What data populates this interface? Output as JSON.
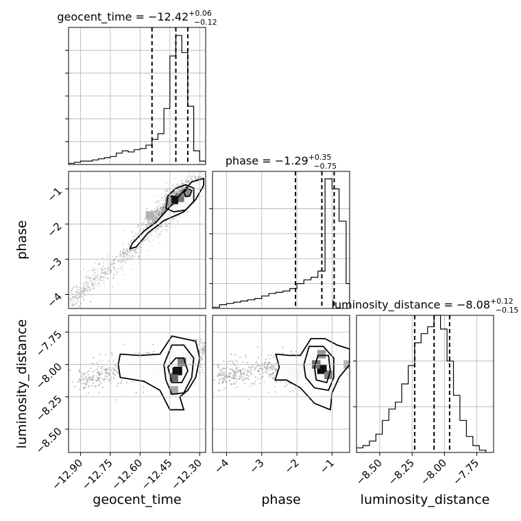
{
  "chart_data": {
    "type": "corner",
    "parameters": [
      {
        "key": "geocent_time",
        "label": "geocent_time",
        "title": {
          "prefix": "geocent_time = ",
          "value": "−12.42",
          "upper": "+0.06",
          "lower": "−0.12"
        },
        "range": [
          -12.96,
          -12.27
        ],
        "ticks": [
          -12.9,
          -12.75,
          -12.6,
          -12.45,
          -12.3
        ],
        "tick_labels": [
          "−12.90",
          "−12.75",
          "−12.60",
          "−12.45",
          "−12.30"
        ],
        "quantiles": [
          -12.54,
          -12.42,
          -12.36
        ],
        "hist_edges": [
          -12.96,
          -12.93,
          -12.9,
          -12.87,
          -12.84,
          -12.81,
          -12.78,
          -12.75,
          -12.72,
          -12.69,
          -12.66,
          -12.63,
          -12.6,
          -12.57,
          -12.54,
          -12.51,
          -12.48,
          -12.45,
          -12.42,
          -12.39,
          -12.36,
          -12.33,
          -12.3,
          -12.27
        ],
        "hist_counts": [
          1,
          2,
          3,
          3,
          4,
          5,
          6,
          7,
          10,
          12,
          11,
          13,
          14,
          17,
          22,
          27,
          49,
          95,
          113,
          98,
          51,
          12,
          3
        ]
      },
      {
        "key": "phase",
        "label": "phase",
        "title": {
          "prefix": "phase = ",
          "value": "−1.29",
          "upper": "+0.35",
          "lower": "−0.75"
        },
        "range": [
          -4.4,
          -0.5
        ],
        "ticks": [
          -4,
          -3,
          -2,
          -1
        ],
        "tick_labels": [
          "−4",
          "−3",
          "−2",
          "−1"
        ],
        "quantiles": [
          -2.04,
          -1.29,
          -0.94
        ],
        "hist_edges": [
          -4.4,
          -4.2,
          -4.0,
          -3.8,
          -3.6,
          -3.4,
          -3.2,
          -3.0,
          -2.8,
          -2.6,
          -2.4,
          -2.2,
          -2.0,
          -1.8,
          -1.6,
          -1.4,
          -1.2,
          -1.0,
          -0.8,
          -0.6,
          -0.5
        ],
        "hist_counts": [
          1,
          3,
          4,
          5,
          6,
          7,
          8,
          10,
          12,
          13,
          14,
          16,
          20,
          23,
          25,
          30,
          104,
          96,
          70,
          20
        ]
      },
      {
        "key": "luminosity_distance",
        "label": "luminosity_distance",
        "title": {
          "prefix": "luminosity_distance = ",
          "value": "−8.08",
          "upper": "+0.12",
          "lower": "−0.15"
        },
        "range": [
          -8.68,
          -7.62
        ],
        "ticks": [
          -8.5,
          -8.25,
          -8.0,
          -7.75
        ],
        "tick_labels": [
          "−8.50",
          "−8.25",
          "−8.00",
          "−7.75"
        ],
        "quantiles": [
          -8.23,
          -8.08,
          -7.96
        ],
        "hist_edges": [
          -8.68,
          -8.63,
          -8.58,
          -8.53,
          -8.48,
          -8.43,
          -8.38,
          -8.33,
          -8.28,
          -8.23,
          -8.18,
          -8.13,
          -8.08,
          -8.03,
          -7.98,
          -7.93,
          -7.88,
          -7.83,
          -7.78,
          -7.73,
          -7.68
        ],
        "hist_counts": [
          2,
          3,
          5,
          8,
          14,
          19,
          22,
          30,
          38,
          48,
          52,
          55,
          60,
          54,
          40,
          25,
          14,
          7,
          3,
          1
        ]
      }
    ],
    "density_ticks": {
      "geocent_time": [
        20,
        40,
        60,
        80,
        100
      ],
      "phase": [
        20,
        40,
        60,
        80
      ],
      "luminosity_distance": [
        20,
        40
      ]
    },
    "density_max": {
      "geocent_time": 120,
      "phase": 110,
      "luminosity_distance": 60
    },
    "pairs": [
      {
        "x": "geocent_time",
        "y": "phase",
        "peak": [
          -12.425,
          -1.3
        ],
        "ridge": [
          [
            -12.96,
            -4.25
          ],
          [
            -12.8,
            -3.45
          ],
          [
            -12.66,
            -2.8
          ],
          [
            -12.56,
            -2.15
          ],
          [
            -12.46,
            -1.55
          ],
          [
            -12.38,
            -1.15
          ],
          [
            -12.3,
            -0.75
          ]
        ],
        "spread": 0.24,
        "contours": [
          [
            [
              -12.64,
              -2.55
            ],
            [
              -12.58,
              -2.2
            ],
            [
              -12.52,
              -1.95
            ],
            [
              -12.48,
              -1.7
            ],
            [
              -12.44,
              -1.45
            ],
            [
              -12.38,
              -1.05
            ],
            [
              -12.34,
              -0.8
            ],
            [
              -12.28,
              -0.7
            ],
            [
              -12.28,
              -0.9
            ],
            [
              -12.32,
              -1.3
            ],
            [
              -12.38,
              -1.65
            ],
            [
              -12.48,
              -1.9
            ],
            [
              -12.56,
              -2.25
            ],
            [
              -12.62,
              -2.65
            ],
            [
              -12.65,
              -2.7
            ]
          ],
          [
            [
              -12.47,
              -1.55
            ],
            [
              -12.46,
              -1.2
            ],
            [
              -12.42,
              -0.98
            ],
            [
              -12.37,
              -0.88
            ],
            [
              -12.33,
              -0.98
            ],
            [
              -12.33,
              -1.35
            ],
            [
              -12.37,
              -1.6
            ],
            [
              -12.43,
              -1.65
            ]
          ],
          [
            [
              -12.38,
              -1.1
            ],
            [
              -12.36,
              -0.98
            ],
            [
              -12.34,
              -1.05
            ],
            [
              -12.35,
              -1.2
            ],
            [
              -12.37,
              -1.22
            ]
          ]
        ],
        "cells": [
          {
            "x": -12.43,
            "y": -1.31,
            "shade": 0.95
          },
          {
            "x": -12.4,
            "y": -1.25,
            "shade": 0.55
          },
          {
            "x": -12.37,
            "y": -1.1,
            "shade": 0.45
          },
          {
            "x": -12.45,
            "y": -1.35,
            "shade": 0.4
          },
          {
            "x": -12.55,
            "y": -1.75,
            "shade": 0.3
          }
        ]
      },
      {
        "x": "geocent_time",
        "y": "luminosity_distance",
        "peak": [
          -12.42,
          -8.05
        ],
        "ridge": [
          [
            -12.92,
            -8.15
          ],
          [
            -12.75,
            -8.05
          ],
          [
            -12.6,
            -8.02
          ],
          [
            -12.45,
            -8.05
          ],
          [
            -12.35,
            -8.0
          ],
          [
            -12.28,
            -7.85
          ]
        ],
        "spread": 0.3,
        "contours": [
          [
            [
              -12.7,
              -7.92
            ],
            [
              -12.6,
              -7.93
            ],
            [
              -12.5,
              -7.92
            ],
            [
              -12.44,
              -7.78
            ],
            [
              -12.38,
              -7.8
            ],
            [
              -12.32,
              -7.82
            ],
            [
              -12.3,
              -7.95
            ],
            [
              -12.32,
              -8.1
            ],
            [
              -12.36,
              -8.2
            ],
            [
              -12.4,
              -8.25
            ],
            [
              -12.38,
              -8.35
            ],
            [
              -12.45,
              -8.35
            ],
            [
              -12.5,
              -8.2
            ],
            [
              -12.58,
              -8.13
            ],
            [
              -12.7,
              -8.1
            ],
            [
              -12.71,
              -8.0
            ]
          ],
          [
            [
              -12.48,
              -8.0
            ],
            [
              -12.44,
              -7.85
            ],
            [
              -12.38,
              -7.85
            ],
            [
              -12.33,
              -7.95
            ],
            [
              -12.34,
              -8.1
            ],
            [
              -12.38,
              -8.22
            ],
            [
              -12.44,
              -8.23
            ],
            [
              -12.47,
              -8.12
            ]
          ],
          [
            [
              -12.46,
              -8.02
            ],
            [
              -12.42,
              -7.95
            ],
            [
              -12.38,
              -7.95
            ],
            [
              -12.36,
              -8.05
            ],
            [
              -12.39,
              -8.14
            ],
            [
              -12.44,
              -8.14
            ]
          ]
        ],
        "cells": [
          {
            "x": -12.41,
            "y": -8.05,
            "shade": 0.95
          },
          {
            "x": -12.43,
            "y": -8.1,
            "shade": 0.6
          },
          {
            "x": -12.39,
            "y": -7.98,
            "shade": 0.5
          },
          {
            "x": -12.43,
            "y": -8.2,
            "shade": 0.35
          }
        ]
      },
      {
        "x": "phase",
        "y": "luminosity_distance",
        "peak": [
          -1.25,
          -8.03
        ],
        "ridge": [
          [
            -4.3,
            -8.1
          ],
          [
            -3.5,
            -8.06
          ],
          [
            -2.7,
            -8.03
          ],
          [
            -2.0,
            -8.05
          ],
          [
            -1.3,
            -8.03
          ],
          [
            -0.6,
            -7.95
          ]
        ],
        "spread": 0.28,
        "contours": [
          [
            [
              -2.6,
              -7.92
            ],
            [
              -2.2,
              -7.93
            ],
            [
              -1.9,
              -7.93
            ],
            [
              -1.6,
              -7.8
            ],
            [
              -1.2,
              -7.8
            ],
            [
              -0.85,
              -7.85
            ],
            [
              -0.5,
              -7.88
            ],
            [
              -0.5,
              -8.0
            ],
            [
              -0.8,
              -8.1
            ],
            [
              -1.0,
              -8.22
            ],
            [
              -1.05,
              -8.35
            ],
            [
              -1.5,
              -8.3
            ],
            [
              -1.9,
              -8.18
            ],
            [
              -2.3,
              -8.12
            ],
            [
              -2.62,
              -8.12
            ],
            [
              -2.5,
              -8.02
            ]
          ],
          [
            [
              -1.8,
              -8.0
            ],
            [
              -1.65,
              -7.86
            ],
            [
              -1.25,
              -7.86
            ],
            [
              -0.95,
              -7.95
            ],
            [
              -0.95,
              -8.1
            ],
            [
              -1.1,
              -8.2
            ],
            [
              -1.5,
              -8.18
            ],
            [
              -1.75,
              -8.1
            ]
          ],
          [
            [
              -1.5,
              -8.02
            ],
            [
              -1.4,
              -7.93
            ],
            [
              -1.1,
              -7.93
            ],
            [
              -1.05,
              -8.05
            ],
            [
              -1.15,
              -8.14
            ],
            [
              -1.45,
              -8.12
            ]
          ]
        ],
        "cells": [
          {
            "x": -1.3,
            "y": -8.04,
            "shade": 0.95
          },
          {
            "x": -1.45,
            "y": -8.0,
            "shade": 0.55
          },
          {
            "x": -1.1,
            "y": -8.08,
            "shade": 0.5
          },
          {
            "x": -1.3,
            "y": -7.92,
            "shade": 0.4
          },
          {
            "x": -0.55,
            "y": -8.0,
            "shade": 0.3
          }
        ]
      }
    ],
    "grid": true,
    "sample_color": "#808080",
    "line_color": "#000000"
  }
}
